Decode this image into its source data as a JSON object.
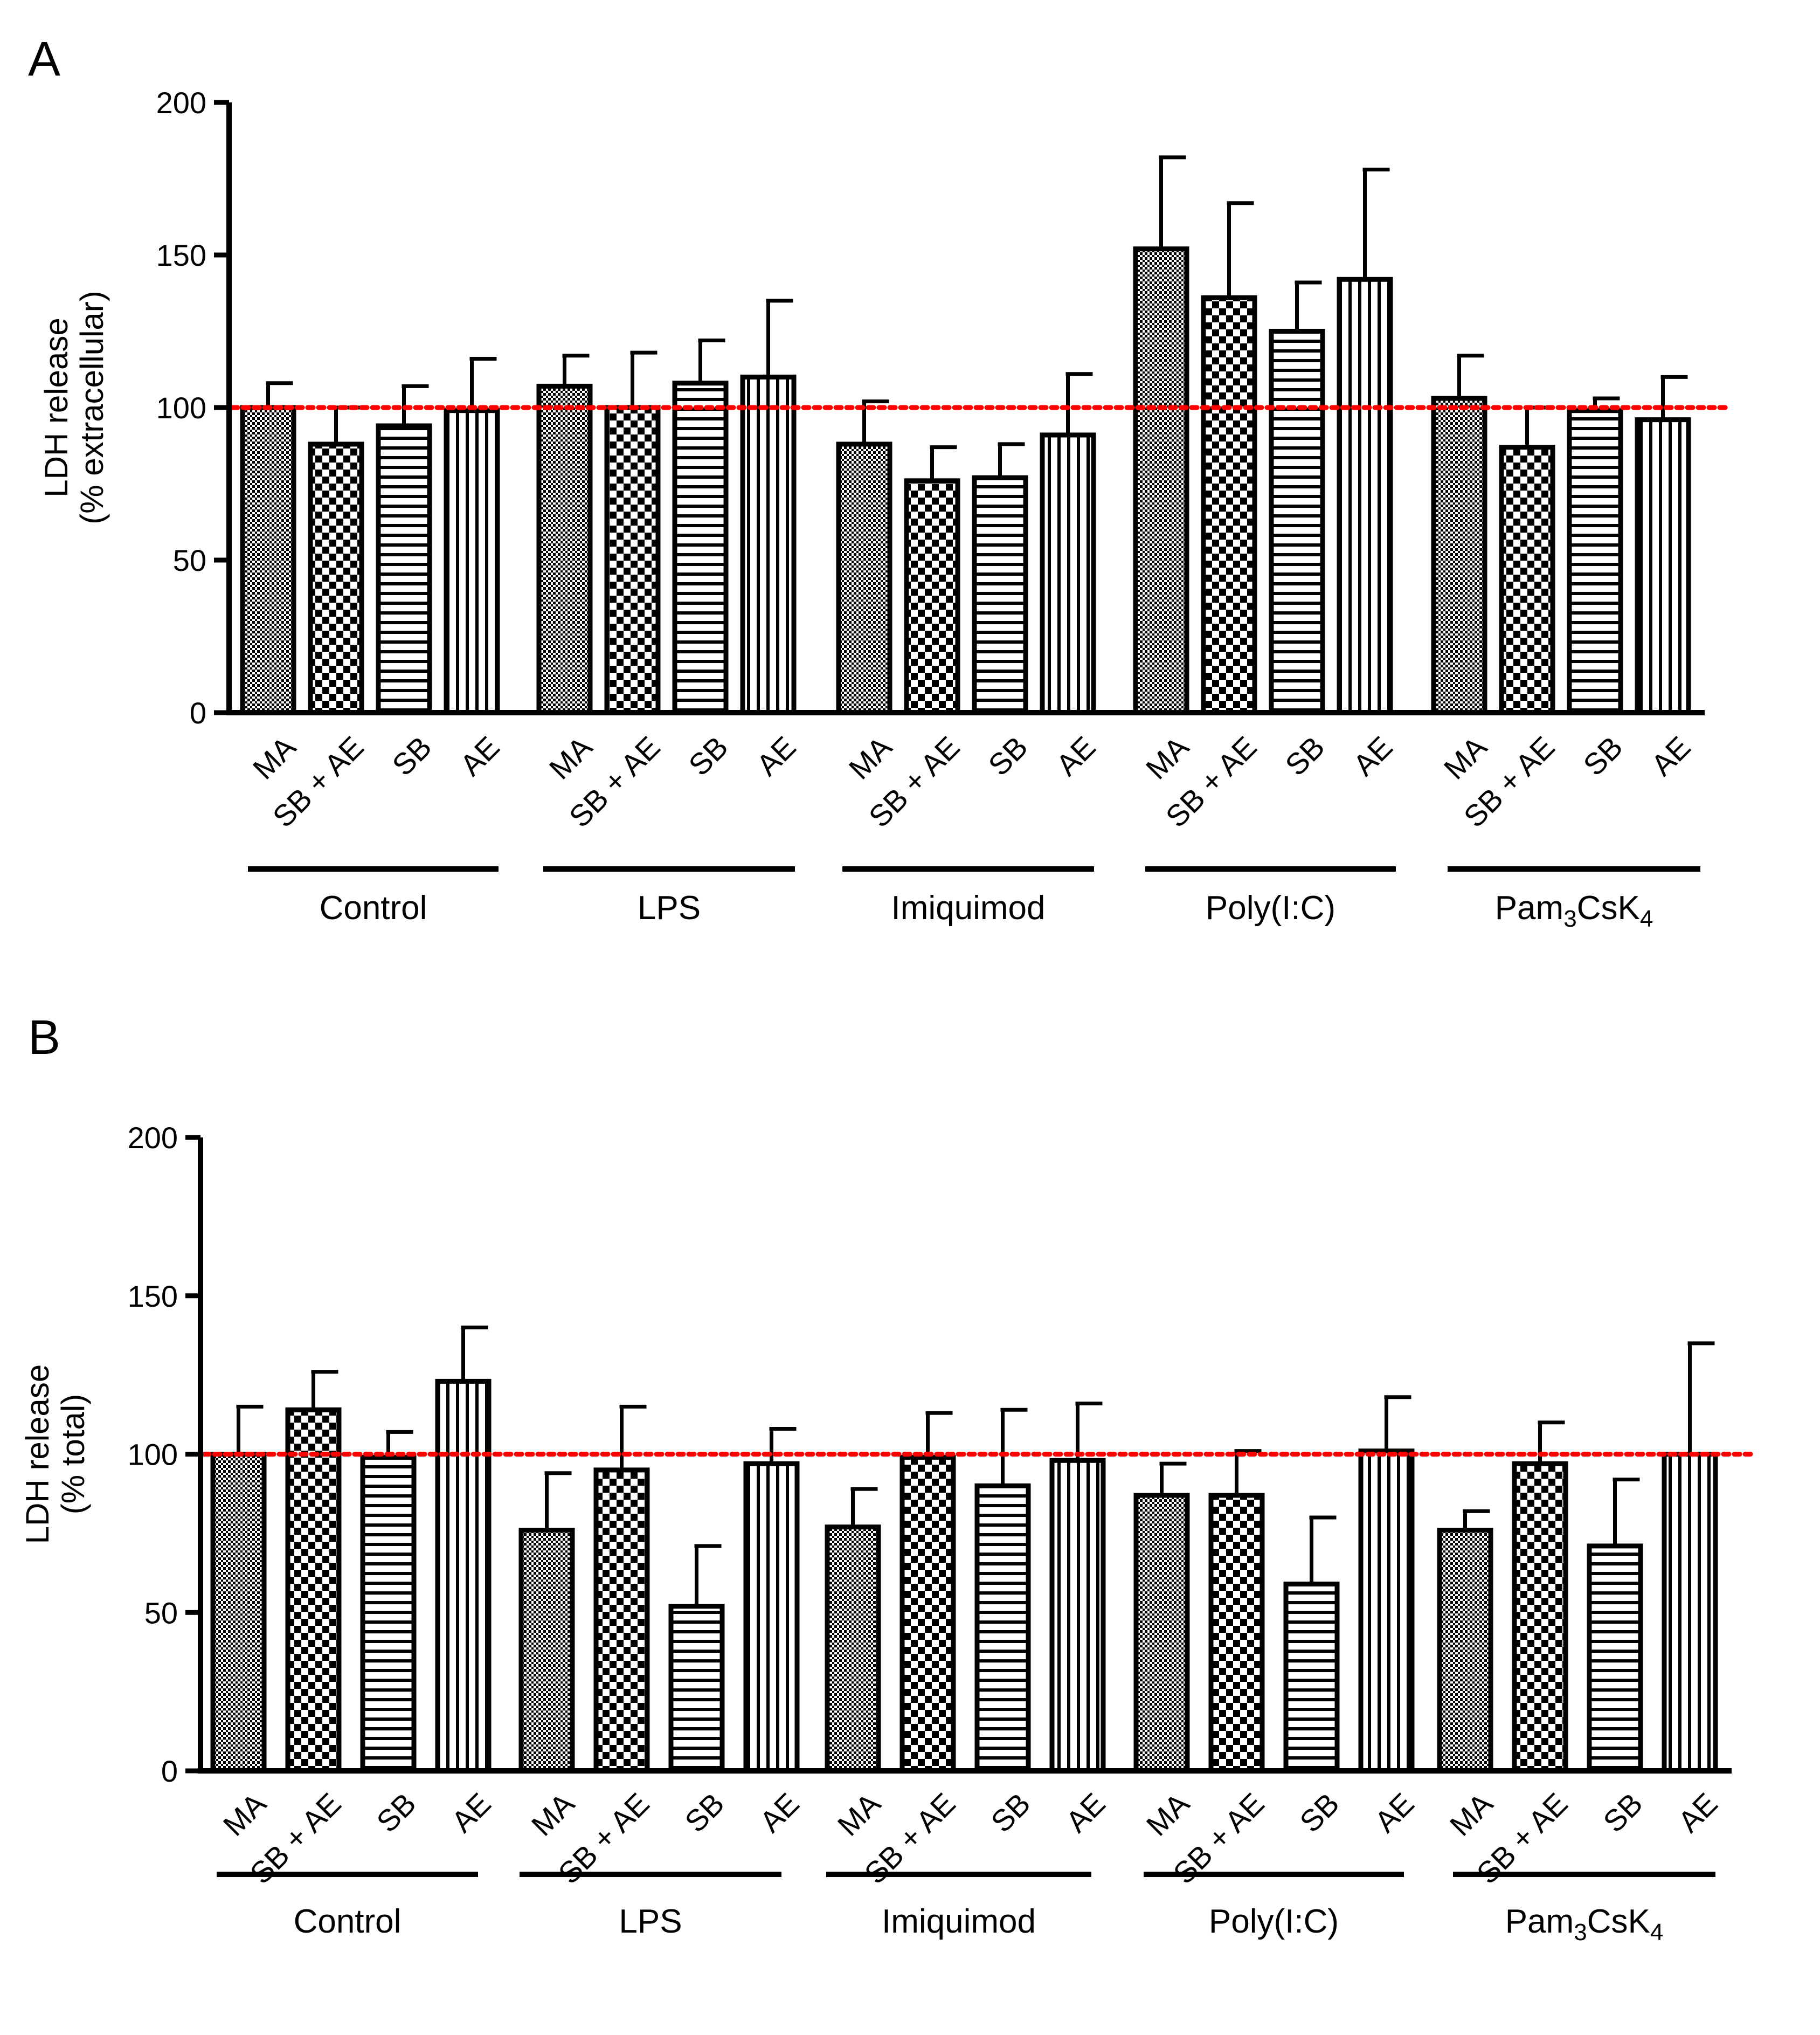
{
  "colors": {
    "axis": "#000000",
    "bar_stroke": "#000000",
    "reference_line": "#ff0000",
    "background": "#ffffff"
  },
  "patterns": {
    "MA": "fine-crosshatch",
    "SB + AE": "checkerboard",
    "SB": "horizontal-stripes",
    "AE": "vertical-stripes"
  },
  "chart_data": [
    {
      "panel": "A",
      "type": "bar",
      "title": "",
      "ylabel_lines": [
        "LDH release",
        "(% extracellular)"
      ],
      "ylim": [
        0,
        200
      ],
      "yticks": [
        0,
        50,
        100,
        150,
        200
      ],
      "reference_line": 100,
      "grid": false,
      "legend": "none",
      "groups": [
        {
          "name": "Control",
          "name_sub": "",
          "name_tail": "",
          "name_sub2": "",
          "bars": [
            {
              "label": "MA",
              "value": 100,
              "error": 108
            },
            {
              "label": "SB + AE",
              "value": 88,
              "error": 100
            },
            {
              "label": "SB",
              "value": 94,
              "error": 107
            },
            {
              "label": "AE",
              "value": 99,
              "error": 116
            }
          ]
        },
        {
          "name": "LPS",
          "name_sub": "",
          "name_tail": "",
          "name_sub2": "",
          "bars": [
            {
              "label": "MA",
              "value": 107,
              "error": 117
            },
            {
              "label": "SB + AE",
              "value": 100,
              "error": 118
            },
            {
              "label": "SB",
              "value": 108,
              "error": 122
            },
            {
              "label": "AE",
              "value": 110,
              "error": 135
            }
          ]
        },
        {
          "name": "Imiquimod",
          "name_sub": "",
          "name_tail": "",
          "name_sub2": "",
          "bars": [
            {
              "label": "MA",
              "value": 88,
              "error": 102
            },
            {
              "label": "SB + AE",
              "value": 76,
              "error": 87
            },
            {
              "label": "SB",
              "value": 77,
              "error": 88
            },
            {
              "label": "AE",
              "value": 91,
              "error": 111
            }
          ]
        },
        {
          "name": "Poly(I:C)",
          "name_sub": "",
          "name_tail": "",
          "name_sub2": "",
          "bars": [
            {
              "label": "MA",
              "value": 152,
              "error": 182
            },
            {
              "label": "SB + AE",
              "value": 136,
              "error": 167
            },
            {
              "label": "SB",
              "value": 125,
              "error": 141
            },
            {
              "label": "AE",
              "value": 142,
              "error": 178
            }
          ]
        },
        {
          "name": "Pam",
          "name_sub": "3",
          "name_tail": "CsK",
          "name_sub2": "4",
          "bars": [
            {
              "label": "MA",
              "value": 103,
              "error": 117
            },
            {
              "label": "SB + AE",
              "value": 87,
              "error": 100
            },
            {
              "label": "SB",
              "value": 99,
              "error": 103
            },
            {
              "label": "AE",
              "value": 96,
              "error": 110
            }
          ]
        }
      ]
    },
    {
      "panel": "B",
      "type": "bar",
      "title": "",
      "ylabel_lines": [
        "LDH release",
        "(% total)"
      ],
      "ylim": [
        0,
        200
      ],
      "yticks": [
        0,
        50,
        100,
        150,
        200
      ],
      "reference_line": 100,
      "grid": false,
      "legend": "none",
      "groups": [
        {
          "name": "Control",
          "name_sub": "",
          "name_tail": "",
          "name_sub2": "",
          "bars": [
            {
              "label": "MA",
              "value": 100,
              "error": 115
            },
            {
              "label": "SB + AE",
              "value": 114,
              "error": 126
            },
            {
              "label": "SB",
              "value": 99,
              "error": 107
            },
            {
              "label": "AE",
              "value": 123,
              "error": 140
            }
          ]
        },
        {
          "name": "LPS",
          "name_sub": "",
          "name_tail": "",
          "name_sub2": "",
          "bars": [
            {
              "label": "MA",
              "value": 76,
              "error": 94
            },
            {
              "label": "SB + AE",
              "value": 95,
              "error": 115
            },
            {
              "label": "SB",
              "value": 52,
              "error": 71
            },
            {
              "label": "AE",
              "value": 97,
              "error": 108
            }
          ]
        },
        {
          "name": "Imiquimod",
          "name_sub": "",
          "name_tail": "",
          "name_sub2": "",
          "bars": [
            {
              "label": "MA",
              "value": 77,
              "error": 89
            },
            {
              "label": "SB + AE",
              "value": 99,
              "error": 113
            },
            {
              "label": "SB",
              "value": 90,
              "error": 114
            },
            {
              "label": "AE",
              "value": 98,
              "error": 116
            }
          ]
        },
        {
          "name": "Poly(I:C)",
          "name_sub": "",
          "name_tail": "",
          "name_sub2": "",
          "bars": [
            {
              "label": "MA",
              "value": 87,
              "error": 97
            },
            {
              "label": "SB + AE",
              "value": 87,
              "error": 101
            },
            {
              "label": "SB",
              "value": 59,
              "error": 80
            },
            {
              "label": "AE",
              "value": 101,
              "error": 118
            }
          ]
        },
        {
          "name": "Pam",
          "name_sub": "3",
          "name_tail": "CsK",
          "name_sub2": "4",
          "bars": [
            {
              "label": "MA",
              "value": 76,
              "error": 82
            },
            {
              "label": "SB + AE",
              "value": 97,
              "error": 110
            },
            {
              "label": "SB",
              "value": 71,
              "error": 92
            },
            {
              "label": "AE",
              "value": 100,
              "error": 135
            }
          ]
        }
      ]
    }
  ]
}
